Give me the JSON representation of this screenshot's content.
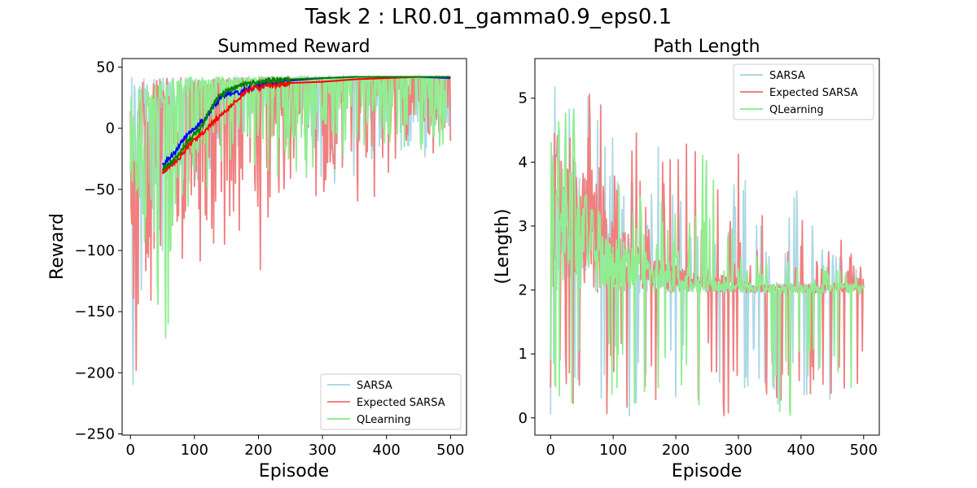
{
  "suptitle": "Task 2 : LR0.01_gamma0.9_eps0.1",
  "colors": {
    "sarsa": "#add8e6",
    "expected_sarsa": "#f08080",
    "qlearning": "#90ee90",
    "sarsa_avg": "#0000ff",
    "expected_sarsa_avg": "#ff0000",
    "qlearning_avg": "#008000"
  },
  "chart_data": [
    {
      "type": "line",
      "title": "Summed Reward",
      "xlabel": "Episode",
      "ylabel": "Reward",
      "xlim": [
        -13,
        525
      ],
      "ylim": [
        -251,
        57
      ],
      "xticks": [
        0,
        100,
        200,
        300,
        400,
        500
      ],
      "yticks": [
        50,
        0,
        -50,
        -100,
        -150,
        -200,
        -250
      ],
      "ytick_labels": [
        "50",
        "0",
        "−50",
        "−100",
        "−150",
        "−200",
        "−250"
      ],
      "legend": "lower-right",
      "series": [
        {
          "name": "SARSA",
          "color_key": "sarsa",
          "x": [
            0,
            10,
            20,
            30,
            40,
            50,
            60,
            70,
            80,
            90,
            100,
            120,
            140,
            160,
            180,
            200,
            220,
            250,
            300,
            350,
            400,
            450,
            500
          ],
          "mean": [
            -50,
            -30,
            -15,
            -5,
            5,
            10,
            15,
            18,
            22,
            25,
            27,
            30,
            33,
            35,
            37,
            38,
            39,
            40,
            41,
            41,
            41,
            41,
            41
          ],
          "low": [
            -240,
            -200,
            -160,
            -120,
            -130,
            -110,
            -80,
            -70,
            -60,
            -50,
            -45,
            -40,
            -30,
            -25,
            -20,
            -15,
            -12,
            -10,
            -60,
            -50,
            -45,
            -40,
            -25
          ]
        },
        {
          "name": "Expected SARSA",
          "color_key": "expected_sarsa",
          "x": [
            0,
            10,
            20,
            30,
            40,
            50,
            60,
            70,
            80,
            90,
            100,
            120,
            140,
            160,
            180,
            200,
            220,
            250,
            300,
            350,
            400,
            450,
            500
          ],
          "mean": [
            -50,
            -30,
            -10,
            0,
            8,
            12,
            16,
            20,
            22,
            25,
            27,
            30,
            32,
            34,
            36,
            37,
            38,
            39,
            40,
            40,
            41,
            41,
            41
          ],
          "low": [
            -90,
            -215,
            -230,
            -160,
            -160,
            -130,
            -100,
            -110,
            -170,
            -100,
            -80,
            -145,
            -90,
            -135,
            -65,
            -160,
            -70,
            -55,
            -60,
            -78,
            -45,
            -30,
            -20
          ]
        },
        {
          "name": "QLearning",
          "color_key": "qlearning",
          "x": [
            0,
            10,
            20,
            30,
            40,
            50,
            60,
            70,
            80,
            90,
            100,
            120,
            140,
            160,
            180,
            200,
            220,
            250,
            300,
            350,
            400,
            450,
            500
          ],
          "mean": [
            -40,
            -20,
            -5,
            5,
            10,
            15,
            18,
            22,
            25,
            28,
            30,
            32,
            35,
            36,
            37,
            38,
            39,
            40,
            40,
            41,
            41,
            41,
            41
          ],
          "low": [
            -60,
            -70,
            -90,
            -150,
            -155,
            -130,
            -215,
            -100,
            -80,
            -70,
            -60,
            -55,
            -50,
            -45,
            -40,
            -38,
            -35,
            -52,
            -30,
            -25,
            -20,
            -18,
            -15
          ]
        }
      ],
      "moving_average": [
        {
          "color_key": "sarsa_avg",
          "x": [
            50,
            60,
            70,
            80,
            90,
            100,
            110,
            120,
            130,
            140,
            150,
            160,
            170,
            180,
            190,
            200,
            220,
            250,
            300,
            350,
            400,
            450,
            500
          ],
          "y": [
            -30,
            -25,
            -20,
            -10,
            -5,
            0,
            5,
            10,
            18,
            25,
            28,
            30,
            28,
            32,
            33,
            35,
            37,
            39,
            41,
            42,
            42,
            42,
            41
          ]
        },
        {
          "color_key": "expected_sarsa_avg",
          "x": [
            50,
            60,
            70,
            80,
            90,
            100,
            110,
            120,
            130,
            140,
            150,
            160,
            170,
            180,
            190,
            200,
            220,
            250,
            300,
            350,
            400,
            450,
            500
          ],
          "y": [
            -36,
            -32,
            -28,
            -22,
            -15,
            -10,
            -5,
            0,
            5,
            10,
            15,
            20,
            25,
            30,
            32,
            33,
            35,
            37,
            38,
            40,
            41,
            42,
            42
          ]
        },
        {
          "color_key": "qlearning_avg",
          "x": [
            50,
            60,
            70,
            80,
            90,
            100,
            110,
            120,
            130,
            140,
            150,
            160,
            170,
            180,
            190,
            200,
            220,
            250,
            300,
            350,
            400,
            450,
            500
          ],
          "y": [
            -34,
            -30,
            -25,
            -18,
            -10,
            -5,
            0,
            10,
            20,
            27,
            30,
            33,
            35,
            36,
            37,
            38,
            39,
            40,
            41,
            42,
            42,
            42,
            42
          ]
        }
      ]
    },
    {
      "type": "line",
      "title": "Path Length",
      "xlabel": "Episode",
      "ylabel": "(Length)",
      "xlim": [
        -25,
        525
      ],
      "ylim": [
        -0.27,
        5.62
      ],
      "xticks": [
        0,
        100,
        200,
        300,
        400,
        500
      ],
      "yticks": [
        0,
        1,
        2,
        3,
        4,
        5
      ],
      "legend": "top-right",
      "series": [
        {
          "name": "SARSA",
          "color_key": "sarsa",
          "x": [
            0,
            10,
            20,
            30,
            40,
            50,
            60,
            70,
            80,
            90,
            100,
            120,
            140,
            160,
            180,
            200,
            220,
            250,
            300,
            350,
            400,
            450,
            500
          ],
          "mean": [
            3.5,
            3.5,
            3.3,
            3.2,
            3.1,
            3.0,
            2.9,
            2.8,
            2.7,
            2.6,
            2.5,
            2.4,
            2.3,
            2.2,
            2.15,
            2.1,
            2.1,
            2.05,
            2.0,
            2.0,
            2.0,
            2.0,
            2.0
          ],
          "high": [
            5.2,
            5.3,
            5.2,
            5.0,
            5.3,
            5.0,
            5.1,
            4.8,
            4.6,
            4.5,
            4.4,
            4.2,
            3.9,
            4.0,
            4.7,
            3.8,
            3.0,
            2.7,
            3.9,
            3.5,
            4.0,
            2.6,
            2.4
          ]
        },
        {
          "name": "Expected SARSA",
          "color_key": "expected_sarsa",
          "x": [
            0,
            10,
            20,
            30,
            40,
            50,
            60,
            70,
            80,
            90,
            100,
            120,
            140,
            160,
            180,
            200,
            220,
            250,
            300,
            350,
            400,
            450,
            500
          ],
          "mean": [
            3.6,
            3.5,
            3.4,
            3.3,
            3.2,
            3.1,
            3.0,
            2.9,
            2.8,
            2.7,
            2.6,
            2.5,
            2.4,
            2.3,
            2.2,
            2.2,
            2.1,
            2.1,
            2.05,
            2.0,
            2.0,
            2.0,
            2.0
          ],
          "high": [
            4.2,
            4.6,
            5.0,
            5.0,
            5.2,
            5.3,
            5.2,
            5.1,
            5.0,
            4.6,
            4.9,
            5.0,
            4.8,
            4.6,
            4.0,
            4.6,
            5.3,
            4.2,
            4.8,
            3.0,
            3.3,
            3.1,
            2.5
          ]
        },
        {
          "name": "QLearning",
          "color_key": "qlearning",
          "x": [
            0,
            10,
            20,
            30,
            40,
            50,
            60,
            70,
            80,
            90,
            100,
            120,
            140,
            160,
            180,
            200,
            220,
            250,
            300,
            350,
            400,
            450,
            500
          ],
          "mean": [
            3.4,
            3.4,
            3.3,
            3.2,
            3.1,
            3.0,
            2.9,
            2.8,
            2.7,
            2.6,
            2.5,
            2.4,
            2.3,
            2.2,
            2.15,
            2.1,
            2.1,
            2.05,
            2.0,
            2.0,
            2.0,
            2.0,
            2.0
          ],
          "high": [
            4.5,
            4.8,
            4.7,
            4.9,
            5.0,
            4.8,
            4.9,
            4.7,
            4.5,
            4.3,
            4.2,
            4.0,
            3.8,
            3.6,
            3.4,
            3.2,
            3.0,
            4.6,
            2.6,
            2.5,
            2.6,
            2.4,
            2.5
          ]
        }
      ]
    }
  ]
}
